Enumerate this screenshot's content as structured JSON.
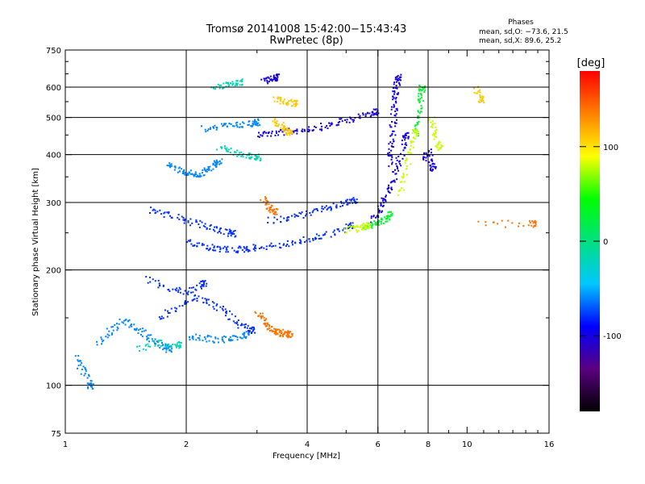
{
  "chart_data": {
    "type": "scatter",
    "title": "Tromsø 20141008 15:42:00−15:43:43",
    "subtitle": "RwPretec (8p)",
    "xlabel": "Frequency [MHz]",
    "ylabel": "Stationary phase Virtual Height [km]",
    "x_scale": "log",
    "y_scale": "log",
    "xlim": [
      1,
      16
    ],
    "ylim": [
      75,
      750
    ],
    "x_ticks": [
      1,
      2,
      4,
      6,
      8,
      10,
      16
    ],
    "x_gridlines": [
      2,
      4,
      6,
      8
    ],
    "y_ticks": [
      75,
      100,
      200,
      300,
      400,
      500,
      600,
      750
    ],
    "y_gridlines": [
      100,
      200,
      300,
      400,
      500,
      600
    ],
    "grid": true,
    "legend": {
      "position": "top-right",
      "title": "Phases",
      "lines": [
        "mean, sd,O: −73.6, 21.5",
        "mean, sd,X:  89.6, 25.2"
      ]
    },
    "colorbar": {
      "label": "[deg]",
      "range": [
        -180,
        180
      ],
      "ticks": [
        100,
        0,
        -100
      ],
      "colors": [
        "#000000",
        "#5a0080",
        "#0000ff",
        "#00c8ff",
        "#00e080",
        "#00ff00",
        "#ffff00",
        "#ff8000",
        "#ff0000"
      ]
    },
    "series": [
      {
        "phase": -100,
        "traces": [
          {
            "f": [
              3.0,
              3.2,
              3.5,
              3.8,
              4.2,
              4.6,
              5.0,
              5.5,
              5.9
            ],
            "h": [
              455,
              456,
              460,
              465,
              472,
              482,
              494,
              508,
              520
            ]
          },
          {
            "f": [
              6.4,
              6.45,
              6.5,
              6.55,
              6.6,
              6.65,
              6.7
            ],
            "h": [
              380,
              420,
              470,
              520,
              560,
              600,
              640
            ]
          },
          {
            "f": [
              5.8,
              6.0,
              6.2,
              6.4,
              6.6,
              6.8,
              7.0
            ],
            "h": [
              270,
              285,
              305,
              330,
              360,
              400,
              450
            ]
          },
          {
            "f": [
              3.1,
              3.2,
              3.35
            ],
            "h": [
              635,
              625,
              640
            ]
          },
          {
            "f": [
              7.8,
              8.0,
              8.2
            ],
            "h": [
              390,
              410,
              370
            ]
          }
        ]
      },
      {
        "phase": -80,
        "traces": [
          {
            "f": [
              2.0,
              2.2,
              2.4,
              2.6,
              2.8,
              3.0,
              3.4,
              3.8,
              4.2,
              4.7,
              5.1
            ],
            "h": [
              238,
              231,
              228,
              227,
              228,
              230,
              233,
              238,
              244,
              252,
              262
            ]
          },
          {
            "f": [
              1.6,
              1.8,
              2.0,
              2.2,
              2.4,
              2.6
            ],
            "h": [
              288,
              280,
              270,
              262,
              255,
              250
            ]
          },
          {
            "f": [
              3.2,
              3.6,
              4.0,
              4.4,
              4.8,
              5.2
            ],
            "h": [
              270,
              275,
              282,
              290,
              298,
              305
            ]
          },
          {
            "f": [
              1.7,
              1.9,
              2.1,
              2.3,
              2.5,
              2.7,
              2.9
            ],
            "h": [
              150,
              160,
              170,
              165,
              155,
              145,
              140
            ]
          },
          {
            "f": [
              1.6,
              1.8,
              2.0,
              2.2
            ],
            "h": [
              190,
              180,
              175,
              185
            ]
          }
        ]
      },
      {
        "phase": -60,
        "traces": [
          {
            "f": [
              1.8,
              1.9,
              2.0,
              2.1,
              2.2,
              2.3,
              2.4
            ],
            "h": [
              380,
              368,
              360,
              356,
              360,
              372,
              385
            ]
          },
          {
            "f": [
              2.2,
              2.4,
              2.6,
              2.8,
              3.0
            ],
            "h": [
              470,
              475,
              478,
              482,
              488
            ]
          },
          {
            "f": [
              1.2,
              1.3,
              1.4,
              1.5,
              1.6,
              1.7,
              1.8
            ],
            "h": [
              130,
              140,
              148,
              142,
              135,
              128,
              125
            ]
          },
          {
            "f": [
              2.0,
              2.2,
              2.4,
              2.6,
              2.8
            ],
            "h": [
              135,
              133,
              132,
              134,
              136
            ]
          },
          {
            "f": [
              1.05,
              1.1,
              1.15
            ],
            "h": [
              120,
              110,
              100
            ]
          }
        ]
      },
      {
        "phase": -20,
        "traces": [
          {
            "f": [
              2.4,
              2.6,
              2.8,
              3.0
            ],
            "h": [
              420,
              410,
              400,
              395
            ]
          },
          {
            "f": [
              2.3,
              2.5,
              2.7
            ],
            "h": [
              600,
              610,
              620
            ]
          },
          {
            "f": [
              1.5,
              1.7,
              1.9
            ],
            "h": [
              125,
              130,
              128
            ]
          }
        ]
      },
      {
        "phase": 30,
        "traces": [
          {
            "f": [
              5.5,
              5.8,
              6.0,
              6.2,
              6.4
            ],
            "h": [
              260,
              262,
              266,
              272,
              280
            ]
          },
          {
            "f": [
              7.4,
              7.5,
              7.6,
              7.7
            ],
            "h": [
              450,
              500,
              550,
              600
            ]
          }
        ]
      },
      {
        "phase": 80,
        "traces": [
          {
            "f": [
              5.0,
              5.3,
              5.6
            ],
            "h": [
              255,
              258,
              262
            ]
          },
          {
            "f": [
              6.8,
              7.0,
              7.2,
              7.4
            ],
            "h": [
              320,
              360,
              410,
              460
            ]
          },
          {
            "f": [
              8.1,
              8.3,
              8.5
            ],
            "h": [
              500,
              460,
              420
            ]
          }
        ]
      },
      {
        "phase": 110,
        "traces": [
          {
            "f": [
              3.3,
              3.5,
              3.7
            ],
            "h": [
              560,
              553,
              548
            ]
          },
          {
            "f": [
              3.3,
              3.4,
              3.5,
              3.6
            ],
            "h": [
              490,
              480,
              470,
              460
            ]
          },
          {
            "f": [
              10.4,
              10.8
            ],
            "h": [
              600,
              560
            ]
          }
        ]
      },
      {
        "phase": 140,
        "traces": [
          {
            "f": [
              3.0,
              3.1,
              3.2,
              3.3,
              3.4,
              3.5,
              3.6
            ],
            "h": [
              155,
              148,
              143,
              140,
              138,
              137,
              136
            ]
          },
          {
            "f": [
              3.1,
              3.2,
              3.3
            ],
            "h": [
              310,
              295,
              285
            ]
          },
          {
            "f": [
              10.8,
              14.5
            ],
            "h": [
              265,
              265
            ]
          }
        ]
      }
    ]
  }
}
